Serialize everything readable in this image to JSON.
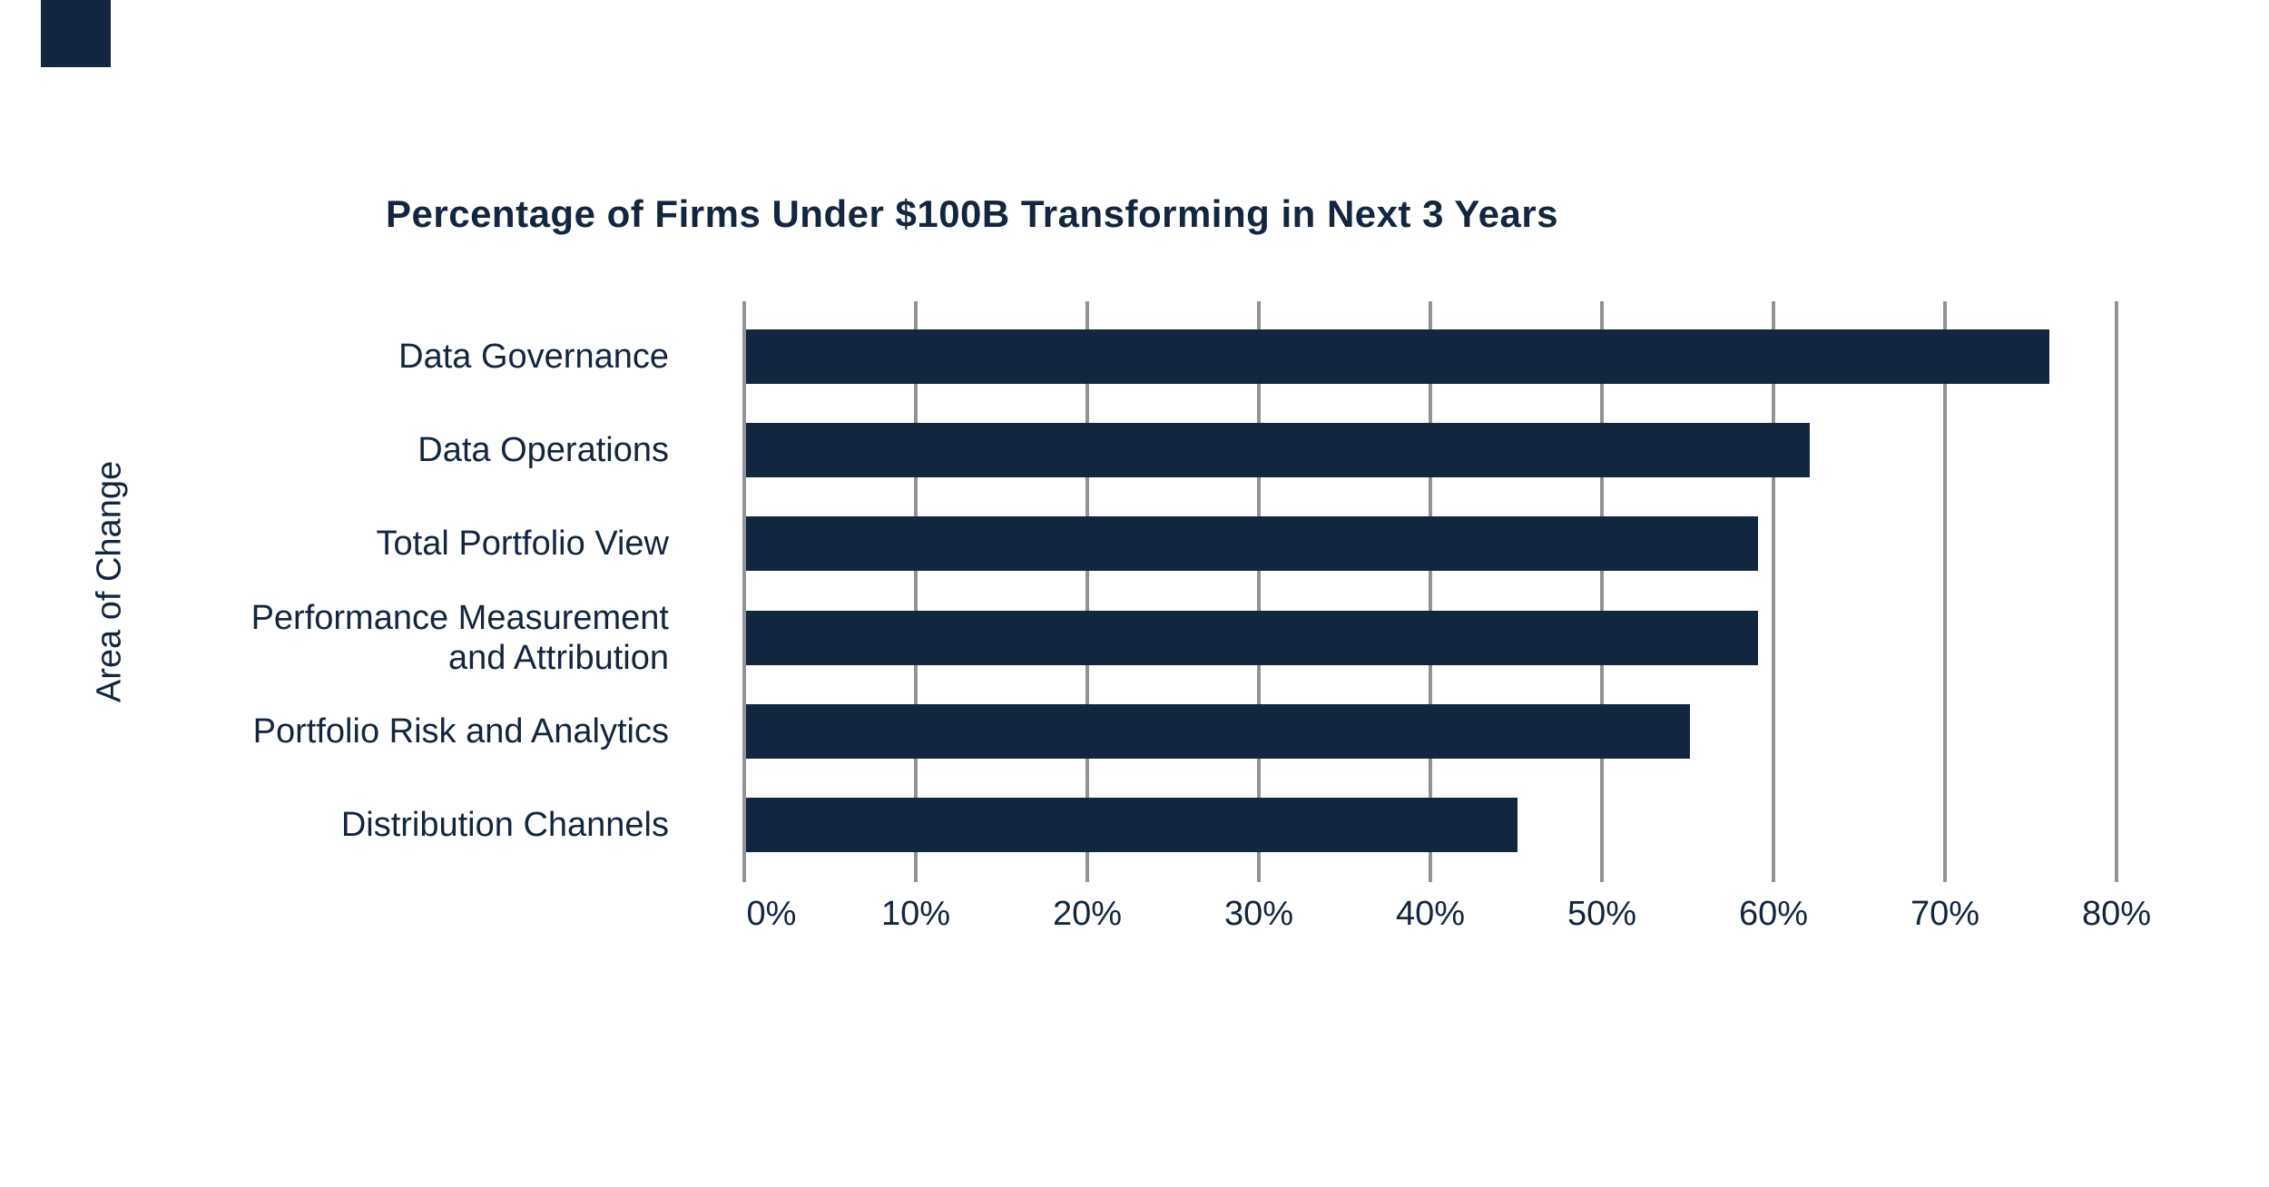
{
  "title": "Percentage of Firms Under $100B Transforming in Next 3 Years",
  "colors": {
    "navy": "#13263F",
    "gridline": "#909498",
    "background": "#FFFFFF"
  },
  "chart_data": {
    "type": "bar",
    "orientation": "horizontal",
    "title": "Percentage of Firms Under $100B Transforming in Next 3 Years",
    "xlabel": "",
    "ylabel": "Area of Change",
    "categories": [
      [
        "Data Governance"
      ],
      [
        "Data Operations"
      ],
      [
        "Total Portfolio View"
      ],
      [
        "Performance Measurement",
        "and Attribution"
      ],
      [
        "Portfolio Risk and Analytics"
      ],
      [
        "Distribution Channels"
      ]
    ],
    "values": [
      76,
      62,
      59,
      59,
      55,
      45
    ],
    "x_ticks": [
      "0%",
      "10%",
      "20%",
      "30%",
      "40%",
      "50%",
      "60%",
      "70%",
      "80%"
    ],
    "xlim": [
      0,
      80
    ],
    "grid": true,
    "legend": "none",
    "bar_color": "#13263F",
    "gridline_color": "#909498",
    "text_color": "#13263F"
  }
}
